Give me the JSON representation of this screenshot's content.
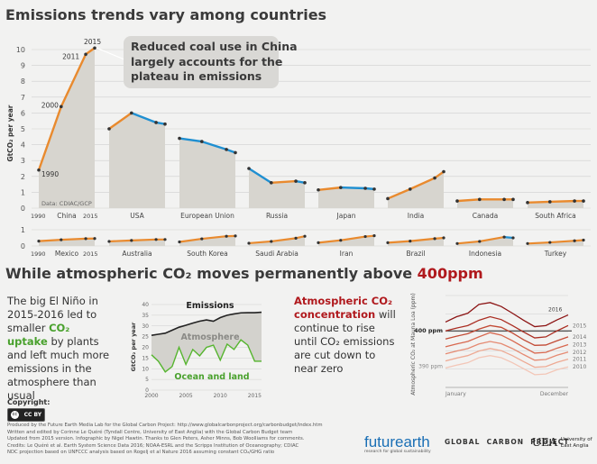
{
  "header": {
    "title": "Emissions trends vary among countries"
  },
  "callout": {
    "text": [
      "Reduced coal use in China",
      "largely accounts for the",
      "plateau in emissions"
    ]
  },
  "chart_data": [
    {
      "type": "area",
      "id": "country-emissions",
      "ylabel": "GtCO₂ per year",
      "ylim": [
        0,
        10
      ],
      "yticks": [
        0,
        1,
        2,
        3,
        4,
        5,
        6,
        7,
        8,
        9,
        10
      ],
      "source": "Data: CDIAC/GCP",
      "year_labels": [
        "1990",
        "2000",
        "2011",
        "2015"
      ],
      "axis_year_left": "1990",
      "axis_year_right": "2015",
      "series": [
        {
          "name": "China",
          "values": [
            2.4,
            6.4,
            9.7,
            10.1
          ]
        },
        {
          "name": "USA",
          "values": [
            5.0,
            6.0,
            5.4,
            5.3
          ]
        },
        {
          "name": "European Union",
          "values": [
            4.4,
            4.2,
            3.7,
            3.5
          ]
        },
        {
          "name": "Russia",
          "values": [
            2.5,
            1.6,
            1.7,
            1.6
          ]
        },
        {
          "name": "Japan",
          "values": [
            1.15,
            1.3,
            1.25,
            1.2
          ]
        },
        {
          "name": "India",
          "values": [
            0.6,
            1.2,
            1.9,
            2.3
          ]
        },
        {
          "name": "Canada",
          "values": [
            0.45,
            0.55,
            0.55,
            0.55
          ]
        },
        {
          "name": "South Africa",
          "values": [
            0.35,
            0.4,
            0.45,
            0.45
          ]
        }
      ]
    },
    {
      "type": "area",
      "id": "small-country-emissions",
      "ylim": [
        0,
        1
      ],
      "yticks": [
        0,
        1
      ],
      "axis_year_left": "1990",
      "axis_year_right": "2015",
      "series": [
        {
          "name": "Mexico",
          "values": [
            0.3,
            0.38,
            0.45,
            0.46
          ]
        },
        {
          "name": "Australia",
          "values": [
            0.28,
            0.34,
            0.4,
            0.4
          ]
        },
        {
          "name": "South Korea",
          "values": [
            0.25,
            0.44,
            0.6,
            0.62
          ]
        },
        {
          "name": "Saudi Arabia",
          "values": [
            0.17,
            0.28,
            0.48,
            0.6
          ]
        },
        {
          "name": "Iran",
          "values": [
            0.2,
            0.35,
            0.58,
            0.63
          ]
        },
        {
          "name": "Brazil",
          "values": [
            0.2,
            0.3,
            0.45,
            0.5
          ]
        },
        {
          "name": "Indonesia",
          "values": [
            0.15,
            0.28,
            0.55,
            0.5
          ]
        },
        {
          "name": "Turkey",
          "values": [
            0.15,
            0.22,
            0.32,
            0.36
          ]
        }
      ]
    },
    {
      "type": "line",
      "id": "emissions-sinks",
      "ylabel": "GtCO₂ per year",
      "ylim": [
        0,
        40
      ],
      "yticks": [
        0,
        5,
        10,
        15,
        20,
        25,
        30,
        35,
        40
      ],
      "x_ticks": [
        "2000",
        "2005",
        "2010",
        "2015"
      ],
      "series": [
        {
          "name": "Emissions",
          "x": [
            2000,
            2001,
            2002,
            2003,
            2004,
            2005,
            2006,
            2007,
            2008,
            2009,
            2010,
            2011,
            2012,
            2013,
            2014,
            2015,
            2016
          ],
          "values": [
            25.6,
            26.1,
            26.6,
            28.0,
            29.4,
            30.3,
            31.3,
            32.2,
            32.8,
            32.2,
            33.9,
            35.0,
            35.6,
            36.1,
            36.2,
            36.2,
            36.4
          ]
        },
        {
          "name": "Ocean and land",
          "x": [
            2000,
            2001,
            2002,
            2003,
            2004,
            2005,
            2006,
            2007,
            2008,
            2009,
            2010,
            2011,
            2012,
            2013,
            2014,
            2015,
            2016
          ],
          "values": [
            16.5,
            13.5,
            8.5,
            11,
            20,
            12,
            19,
            16,
            20,
            21,
            14,
            21.5,
            19,
            23.5,
            21,
            13.5,
            13.5
          ]
        }
      ],
      "labels": {
        "emissions": "Emissions",
        "atmosphere": "Atmosphere",
        "sinks": "Ocean and land"
      }
    },
    {
      "type": "line",
      "id": "mauna-loa",
      "ylabel": "Atmospheric CO₂ at Mauna Loa (ppm)",
      "reference_label": "400 ppm",
      "tick_label": "390 ppm",
      "x_labels": [
        "January",
        "December"
      ],
      "series": [
        {
          "name": "2010",
          "values": [
            389.5,
            390.3,
            391.0,
            392.4,
            393.0,
            392.4,
            391.0,
            389.3,
            387.6,
            387.8,
            389.0,
            389.8
          ]
        },
        {
          "name": "2011",
          "values": [
            391.5,
            392.3,
            393.0,
            394.3,
            395.0,
            394.4,
            393.0,
            391.3,
            389.7,
            389.9,
            391.1,
            392.0
          ]
        },
        {
          "name": "2012",
          "values": [
            393.5,
            394.3,
            395.0,
            396.3,
            397.0,
            396.4,
            395.0,
            393.3,
            391.7,
            391.9,
            393.1,
            394.0
          ]
        },
        {
          "name": "2013",
          "values": [
            395.5,
            396.3,
            397.0,
            398.3,
            399.5,
            398.8,
            397.2,
            395.4,
            393.7,
            393.9,
            395.1,
            396.1
          ]
        },
        {
          "name": "2014",
          "values": [
            397.7,
            398.5,
            399.2,
            400.5,
            401.5,
            401.0,
            399.4,
            397.5,
            395.9,
            396.0,
            397.2,
            398.3
          ]
        },
        {
          "name": "2015",
          "values": [
            400.0,
            400.8,
            401.5,
            403.0,
            404.0,
            403.2,
            401.5,
            399.7,
            398.0,
            398.3,
            400.0,
            401.5
          ]
        },
        {
          "name": "2016",
          "values": [
            402.5,
            404.0,
            405.0,
            407.5,
            408.0,
            406.9,
            405.0,
            403.0,
            401.2,
            401.5,
            403.1,
            404.5
          ]
        }
      ]
    }
  ],
  "section2": {
    "title_prefix": "While atmospheric CO₂ moves permanently above ",
    "title_emph": "400ppm"
  },
  "left_text": {
    "p1": "The big El Niño in 2015-2016 led to smaller ",
    "uptake": "CO₂ uptake",
    "p2": " by plants and left much more emissions in the atmosphere than usual"
  },
  "right_text": {
    "emph": "Atmospheric CO₂ concentration",
    "rest": " will continue to rise until CO₂ emissions are cut down to near zero"
  },
  "copyright": {
    "label": "Copyright:",
    "license": "CC BY"
  },
  "credits": [
    "Produced by the Future Earth Media Lab for the Global Carbon Project: http://www.globalcarbonproject.org/carbonbudget/index.htm",
    "Written and edited by Corinne Le Quéré (Tyndall Centre, University of East Anglia) with the Global Carbon Budget team",
    "Updated from 2015 version. Infographic by Nigel Hawtin. Thanks to Glen Peters, Asher Minns, Bob Woolliams for comments.",
    "Credits: Le Quéré et al. Earth System Science Data 2016; NOAA-ESRL and the Scripps Institution of Oceanography; CDIAC",
    "NDC projection based on UNFCCC analysis based on Rogelj et al Nature 2016 assuming constant CO₂/GHG ratio"
  ],
  "logos": {
    "futurearth": "futurearth",
    "futurearth_sub": "research for global sustainability",
    "gcp": "GLOBAL  CARBON  PROJECT",
    "uea_mark": "UEA",
    "uea_line1": "University of",
    "uea_line2": "East Anglia"
  },
  "colors": {
    "increase": "#e98a2e",
    "decrease": "#1f8fd1",
    "area": "#d7d5cf",
    "emissions_line": "#222222",
    "sinks_line": "#56b52f",
    "accent_red": "#b0191d",
    "background": "#f2f2f1"
  }
}
